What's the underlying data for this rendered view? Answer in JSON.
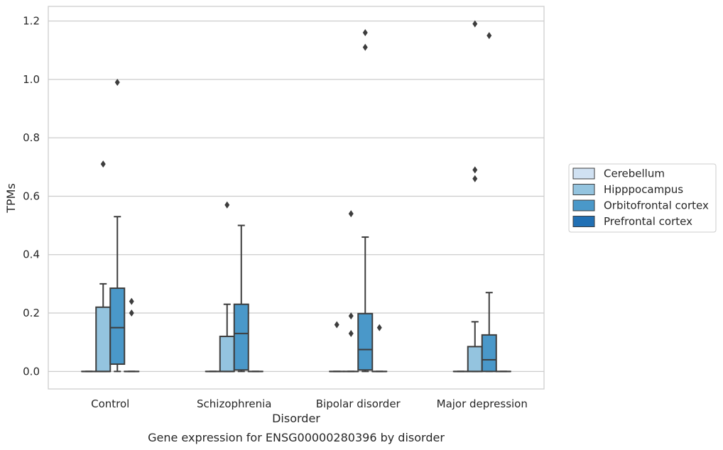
{
  "caption": "Gene expression for ENSG00000280396 by disorder",
  "chart_data": {
    "type": "box",
    "xlabel": "Disorder",
    "ylabel": "TPMs",
    "ylim": [
      -0.06,
      1.25
    ],
    "yticks": [
      "0.0",
      "0.2",
      "0.4",
      "0.6",
      "0.8",
      "1.0",
      "1.2"
    ],
    "ytick_values": [
      0.0,
      0.2,
      0.4,
      0.6,
      0.8,
      1.0,
      1.2
    ],
    "grid": "horizontal",
    "legend_position": "right",
    "categories": [
      "Control",
      "Schizophrenia",
      "Bipolar disorder",
      "Major depression"
    ],
    "series": [
      {
        "name": "Cerebellum",
        "color": "#d0e1f2",
        "boxes": [
          {
            "q1": 0,
            "median": 0,
            "q3": 0,
            "whisker_low": 0,
            "whisker_high": 0,
            "outliers": []
          },
          {
            "q1": 0,
            "median": 0,
            "q3": 0,
            "whisker_low": 0,
            "whisker_high": 0,
            "outliers": []
          },
          {
            "q1": 0,
            "median": 0,
            "q3": 0,
            "whisker_low": 0,
            "whisker_high": 0,
            "outliers": [
              0.16
            ]
          },
          {
            "q1": 0,
            "median": 0,
            "q3": 0,
            "whisker_low": 0,
            "whisker_high": 0,
            "outliers": []
          }
        ]
      },
      {
        "name": "Hipppocampus",
        "color": "#94c4df",
        "boxes": [
          {
            "q1": 0,
            "median": 0,
            "q3": 0.22,
            "whisker_low": 0,
            "whisker_high": 0.3,
            "outliers": [
              0.71
            ]
          },
          {
            "q1": 0,
            "median": 0,
            "q3": 0.12,
            "whisker_low": 0,
            "whisker_high": 0.23,
            "outliers": [
              0.57
            ]
          },
          {
            "q1": 0,
            "median": 0,
            "q3": 0,
            "whisker_low": 0,
            "whisker_high": 0,
            "outliers": [
              0.13,
              0.19,
              0.54
            ]
          },
          {
            "q1": 0,
            "median": 0,
            "q3": 0.085,
            "whisker_low": 0,
            "whisker_high": 0.17,
            "outliers": [
              0.66,
              0.69,
              1.19
            ]
          }
        ]
      },
      {
        "name": "Orbitofrontal cortex",
        "color": "#4a98c9",
        "boxes": [
          {
            "q1": 0.025,
            "median": 0.15,
            "q3": 0.285,
            "whisker_low": 0,
            "whisker_high": 0.53,
            "outliers": [
              0.99
            ]
          },
          {
            "q1": 0.005,
            "median": 0.13,
            "q3": 0.23,
            "whisker_low": 0,
            "whisker_high": 0.5,
            "outliers": []
          },
          {
            "q1": 0.005,
            "median": 0.075,
            "q3": 0.198,
            "whisker_low": 0,
            "whisker_high": 0.46,
            "outliers": [
              1.11,
              1.16
            ]
          },
          {
            "q1": 0,
            "median": 0.04,
            "q3": 0.125,
            "whisker_low": 0,
            "whisker_high": 0.27,
            "outliers": [
              1.15
            ]
          }
        ]
      },
      {
        "name": "Prefrontal cortex",
        "color": "#2170b4",
        "boxes": [
          {
            "q1": 0,
            "median": 0,
            "q3": 0,
            "whisker_low": 0,
            "whisker_high": 0,
            "outliers": [
              0.2,
              0.24
            ]
          },
          {
            "q1": 0,
            "median": 0,
            "q3": 0,
            "whisker_low": 0,
            "whisker_high": 0,
            "outliers": []
          },
          {
            "q1": 0,
            "median": 0,
            "q3": 0,
            "whisker_low": 0,
            "whisker_high": 0,
            "outliers": [
              0.15
            ]
          },
          {
            "q1": 0,
            "median": 0,
            "q3": 0,
            "whisker_low": 0,
            "whisker_high": 0,
            "outliers": []
          }
        ]
      }
    ]
  }
}
